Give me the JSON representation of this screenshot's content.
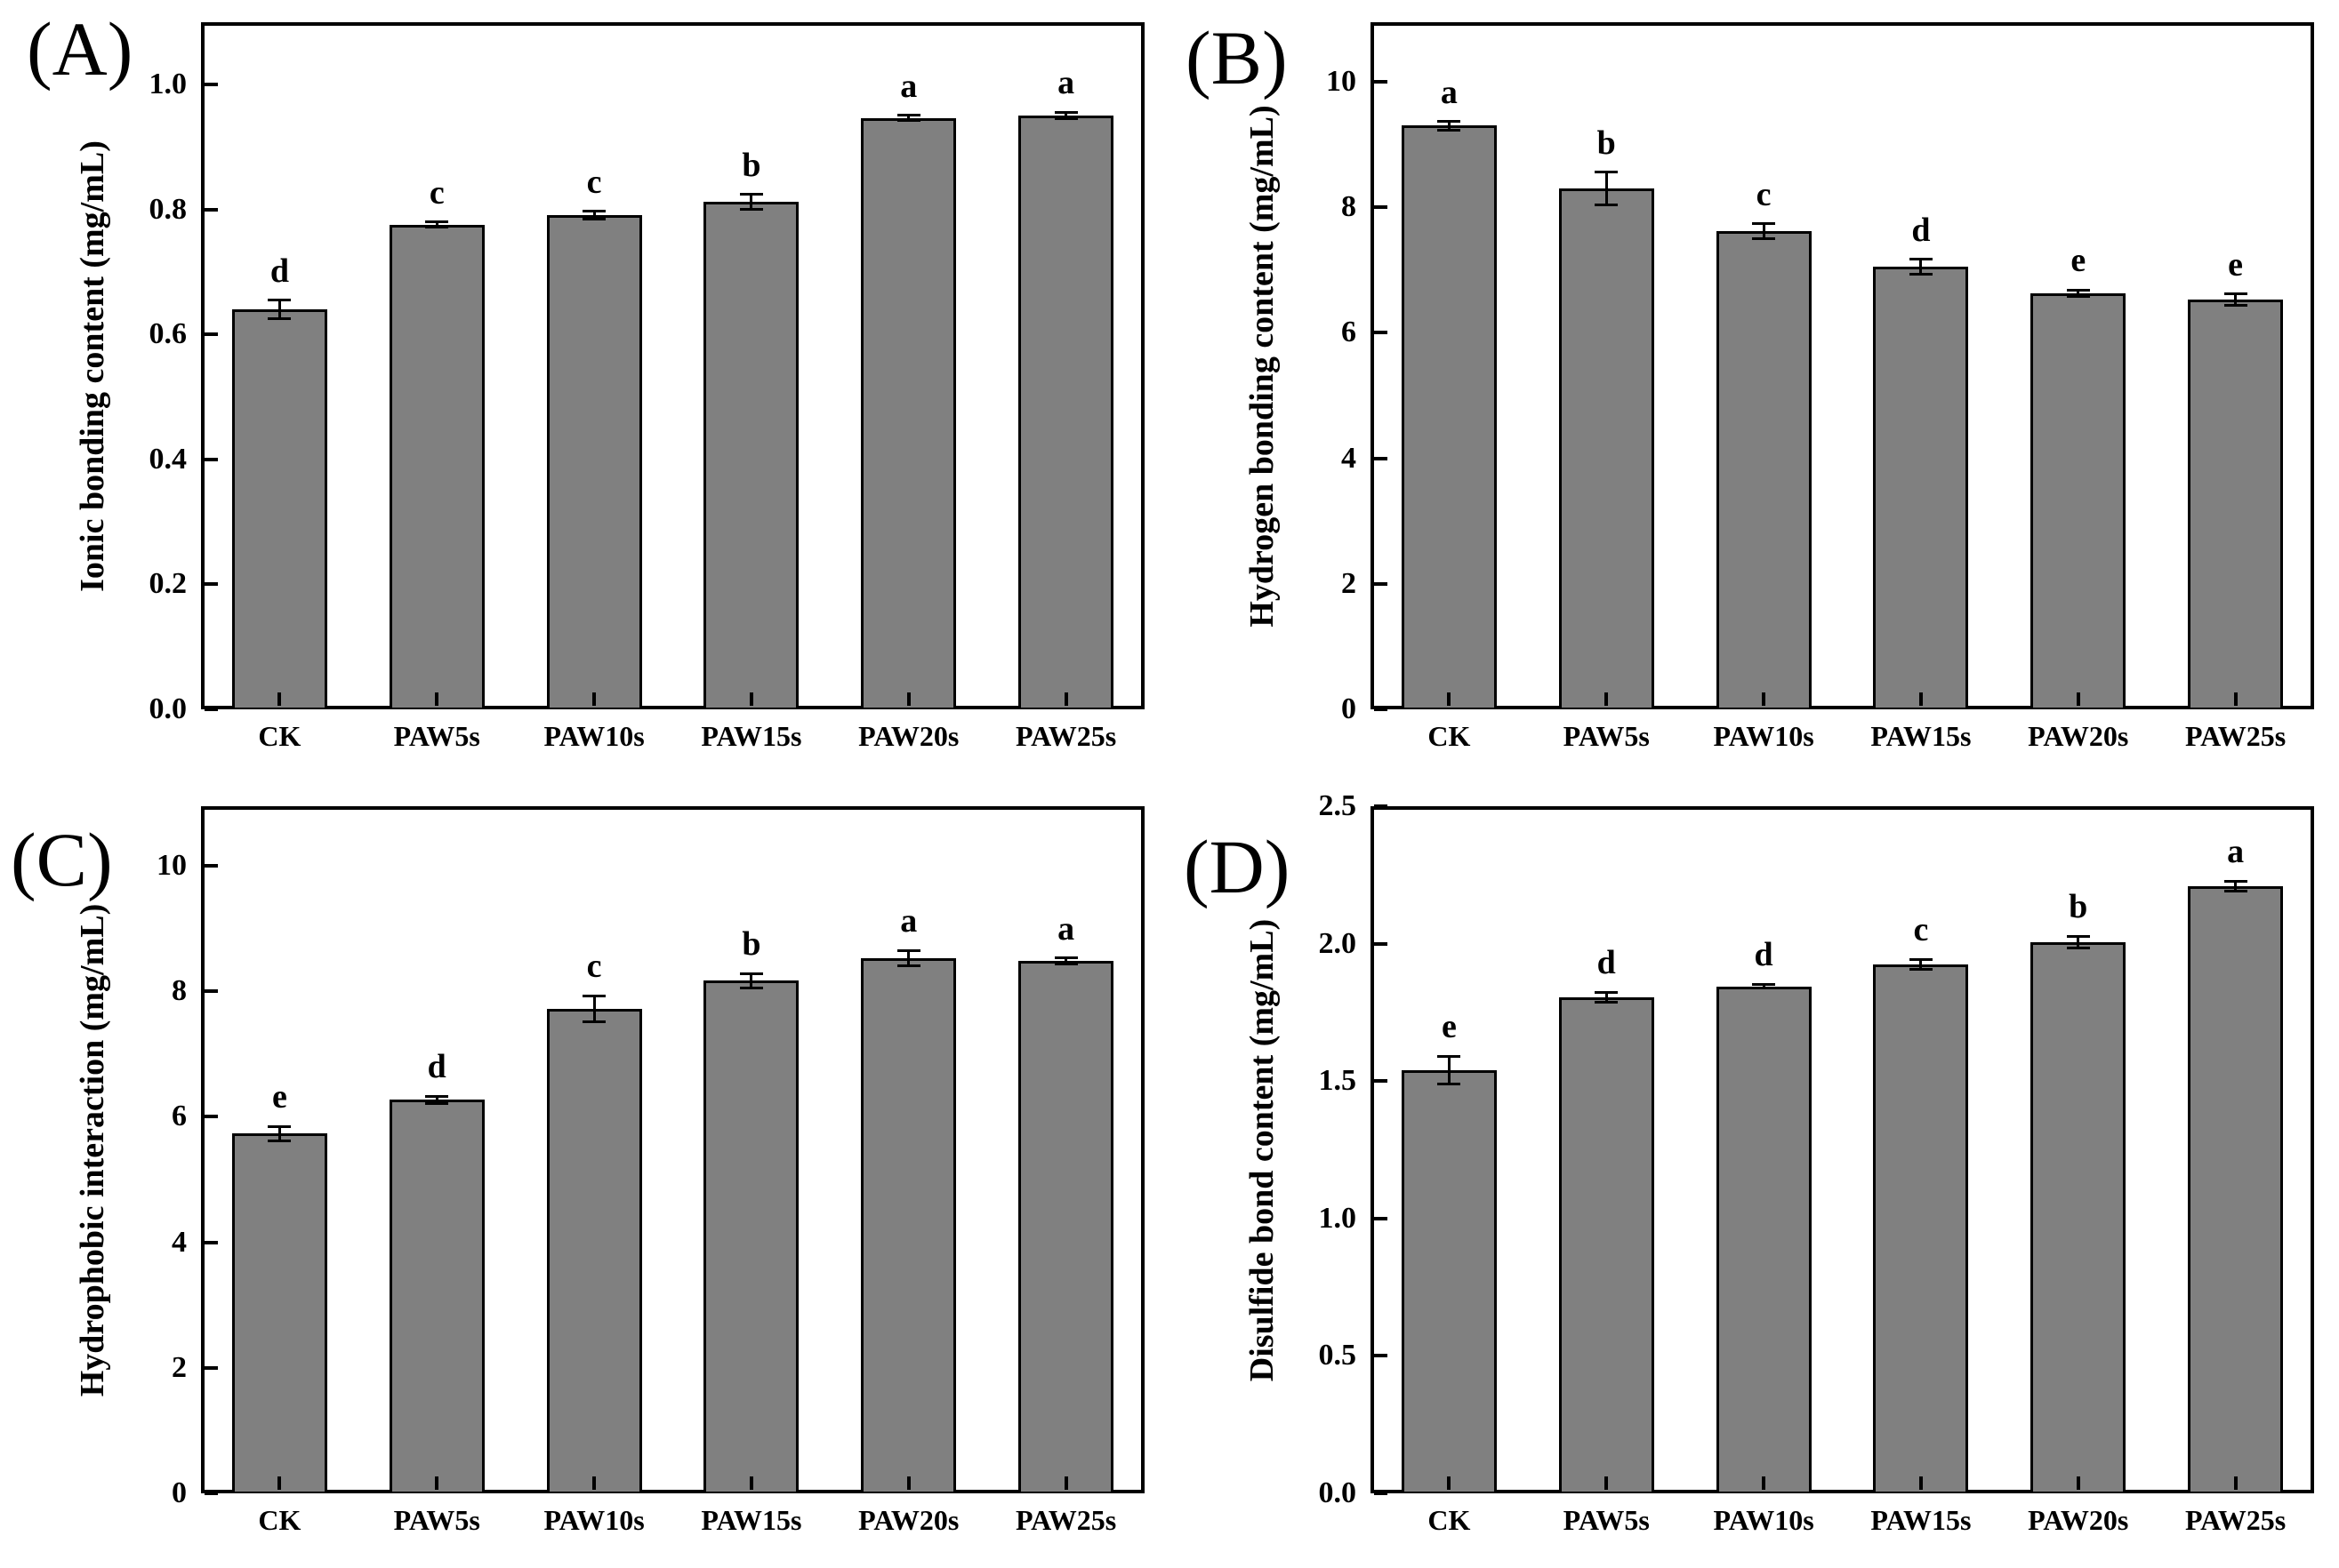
{
  "figure": {
    "background": "#ffffff",
    "bar_fill": "#808080",
    "bar_edge": "#000000",
    "axis_color": "#000000",
    "panel_tags": [
      "(A)",
      "(B)",
      "(C)",
      "(D)"
    ]
  },
  "chart_data": [
    {
      "type": "bar",
      "tag": "(A)",
      "title": "",
      "xlabel": "",
      "ylabel": "Ionic bonding content (mg/mL)",
      "categories": [
        "CK",
        "PAW5s",
        "PAW10s",
        "PAW15s",
        "PAW20s",
        "PAW25s"
      ],
      "values": [
        0.64,
        0.776,
        0.791,
        0.812,
        0.947,
        0.951
      ],
      "errors": [
        0.015,
        0.004,
        0.006,
        0.012,
        0.004,
        0.005
      ],
      "sig_letters": [
        "d",
        "c",
        "c",
        "b",
        "a",
        "a"
      ],
      "ylim": [
        0,
        1.1
      ],
      "yticks": [
        0.0,
        0.2,
        0.4,
        0.6,
        0.8,
        1.0
      ],
      "ytick_labels": [
        "0.0",
        "0.2",
        "0.4",
        "0.6",
        "0.8",
        "1.0"
      ],
      "grid": false,
      "legend": null
    },
    {
      "type": "bar",
      "tag": "(B)",
      "title": "",
      "xlabel": "",
      "ylabel": "Hydrogen bonding content (mg/mL)",
      "categories": [
        "CK",
        "PAW5s",
        "PAW10s",
        "PAW15s",
        "PAW20s",
        "PAW25s"
      ],
      "values": [
        9.3,
        8.3,
        7.62,
        7.05,
        6.63,
        6.53
      ],
      "errors": [
        0.07,
        0.26,
        0.12,
        0.12,
        0.05,
        0.09
      ],
      "sig_letters": [
        "a",
        "b",
        "c",
        "d",
        "e",
        "e"
      ],
      "ylim": [
        0,
        10.95
      ],
      "yticks": [
        0,
        2,
        4,
        6,
        8,
        10
      ],
      "ytick_labels": [
        "0",
        "2",
        "4",
        "6",
        "8",
        "10"
      ],
      "grid": false,
      "legend": null
    },
    {
      "type": "bar",
      "tag": "(C)",
      "title": "",
      "xlabel": "",
      "ylabel": "Hydrophobic interaction (mg/mL)",
      "categories": [
        "CK",
        "PAW5s",
        "PAW10s",
        "PAW15s",
        "PAW20s",
        "PAW25s"
      ],
      "values": [
        5.73,
        6.27,
        7.72,
        8.17,
        8.53,
        8.48
      ],
      "errors": [
        0.12,
        0.06,
        0.21,
        0.11,
        0.12,
        0.05
      ],
      "sig_letters": [
        "e",
        "d",
        "c",
        "b",
        "a",
        "a"
      ],
      "ylim": [
        0,
        10.95
      ],
      "yticks": [
        0,
        2,
        4,
        6,
        8,
        10
      ],
      "ytick_labels": [
        "0",
        "2",
        "4",
        "6",
        "8",
        "10"
      ],
      "grid": false,
      "legend": null
    },
    {
      "type": "bar",
      "tag": "(D)",
      "title": "",
      "xlabel": "",
      "ylabel": "Disulfide bond content (mg/mL)",
      "categories": [
        "CK",
        "PAW5s",
        "PAW10s",
        "PAW15s",
        "PAW20s",
        "PAW25s"
      ],
      "values": [
        1.54,
        1.805,
        1.845,
        1.925,
        2.005,
        2.21
      ],
      "errors": [
        0.05,
        0.018,
        0.008,
        0.018,
        0.022,
        0.018
      ],
      "sig_letters": [
        "e",
        "d",
        "d",
        "c",
        "b",
        "a"
      ],
      "ylim": [
        0,
        2.5
      ],
      "yticks": [
        0.0,
        0.5,
        1.0,
        1.5,
        2.0,
        2.5
      ],
      "ytick_labels": [
        "0.0",
        "0.5",
        "1.0",
        "1.5",
        "2.0",
        "2.5"
      ],
      "grid": false,
      "legend": null
    }
  ]
}
